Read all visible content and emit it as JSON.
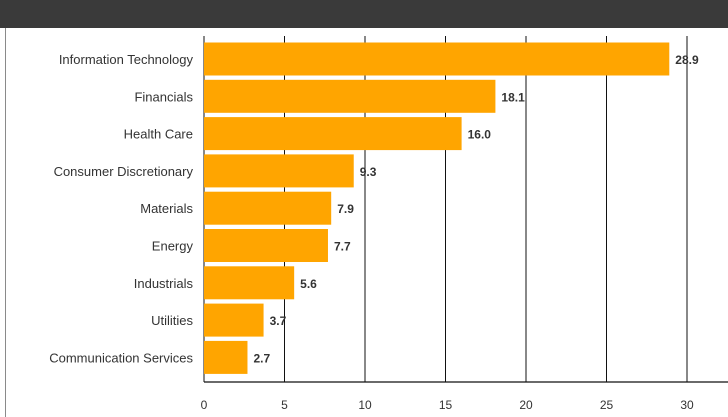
{
  "chart_data": {
    "type": "bar",
    "orientation": "horizontal",
    "categories": [
      "Information Technology",
      "Financials",
      "Health Care",
      "Consumer Discretionary",
      "Materials",
      "Energy",
      "Industrials",
      "Utilities",
      "Communication Services"
    ],
    "values": [
      28.9,
      18.1,
      16.0,
      9.3,
      7.9,
      7.7,
      5.6,
      3.7,
      2.7
    ],
    "value_labels": [
      "28.9",
      "18.1",
      "16.0",
      "9.3",
      "7.9",
      "7.7",
      "5.6",
      "3.7",
      "2.7"
    ],
    "xlim": [
      0,
      30
    ],
    "xticks": [
      0,
      5,
      10,
      15,
      20,
      25,
      30
    ],
    "grid": true,
    "colors": {
      "bar": "#ffa500",
      "grid": "#111111",
      "header": "#3a3a3a"
    }
  }
}
